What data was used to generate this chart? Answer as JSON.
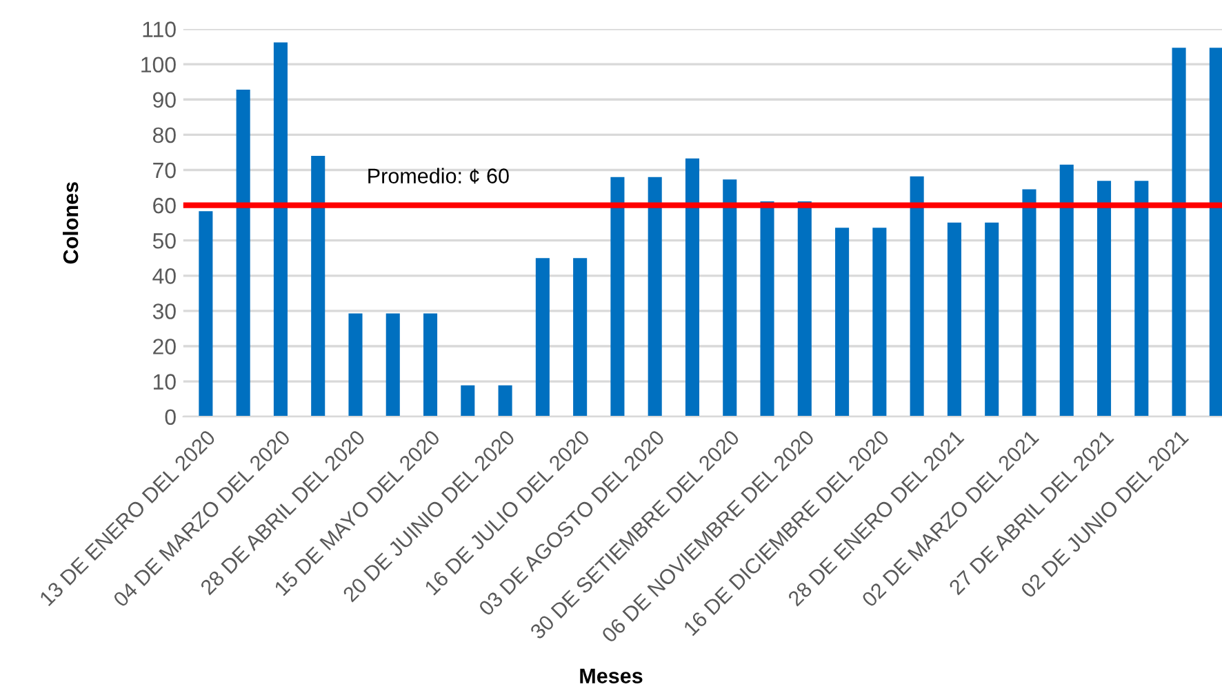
{
  "chart_data": {
    "type": "bar",
    "categories": [
      "13 DE ENERO DEL 2020",
      null,
      "04 DE MARZO DEL 2020",
      null,
      "28 DE ABRIL DEL 2020",
      null,
      "15 DE MAYO DEL 2020",
      null,
      "20 DE JUINIO DEL 2020",
      null,
      "16 DE JULIO DEL 2020",
      null,
      "03 DE AGOSTO DEL 2020",
      null,
      "30 DE SETIEMBRE DEL 2020",
      null,
      "06 DE NOVIEMBRE DEL 2020",
      null,
      "16 DE DICIEMBRE DEL 2020",
      null,
      "28 DE ENERO DEL 2021",
      null,
      "02 DE MARZO DEL 2021",
      null,
      "27 DE ABRIL DEL 2021",
      null,
      "02 DE JUNIO DEL 2021",
      null
    ],
    "values": [
      58.3,
      92.8,
      106.2,
      74,
      29.3,
      29.3,
      29.3,
      8.9,
      8.9,
      45,
      45,
      68,
      68,
      73.3,
      67.3,
      61.1,
      61.1,
      53.6,
      53.6,
      68.2,
      55.1,
      55.1,
      64.5,
      71.5,
      66.9,
      66.9,
      104.7,
      104.7
    ],
    "color": "#0070c0",
    "xlabel": "Meses",
    "ylabel": "Colones",
    "ylim": [
      0,
      110
    ],
    "yticks": [
      0,
      10,
      20,
      30,
      40,
      50,
      60,
      70,
      80,
      90,
      100,
      110
    ],
    "grid": "y",
    "ref_lines": [
      {
        "axis": "y",
        "value": 60,
        "label": "Promedio: ¢ 60",
        "color": "#ff0000",
        "line_style": "solid"
      }
    ]
  }
}
